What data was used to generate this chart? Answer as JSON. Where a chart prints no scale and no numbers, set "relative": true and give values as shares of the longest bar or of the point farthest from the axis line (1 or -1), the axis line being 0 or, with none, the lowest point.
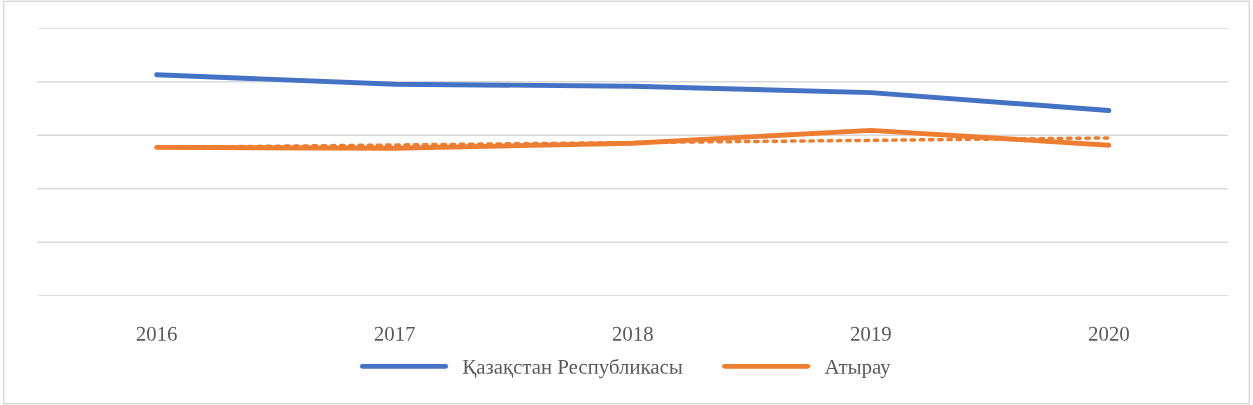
{
  "chart_data": {
    "type": "line",
    "relative": true,
    "categories": [
      "2016",
      "2017",
      "2018",
      "2019",
      "2020"
    ],
    "series": [
      {
        "name": "Қазақстан Республикасы",
        "color": "#4472c4",
        "values": [
          1,
          0.957,
          0.948,
          0.919,
          0.838
        ]
      },
      {
        "name": "Атырау",
        "color": "#ed7d31",
        "values": [
          0.671,
          0.667,
          0.69,
          0.748,
          0.681
        ]
      },
      {
        "type": "line",
        "color": "#ed7d31",
        "line_style": "dotted",
        "values": [
          0.671,
          0.682,
          0.693,
          0.703,
          0.714
        ]
      }
    ],
    "grid": "y",
    "legend": "bottom",
    "marker": "none",
    "line_style": "solid"
  }
}
